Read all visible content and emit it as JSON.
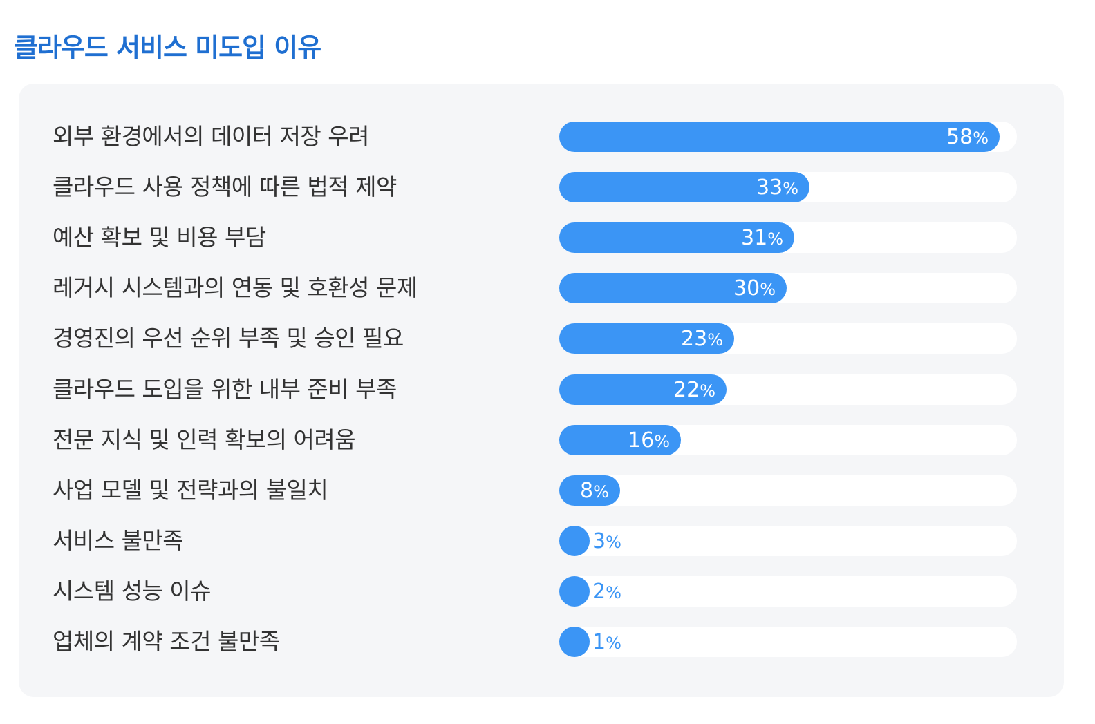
{
  "chart_data": {
    "type": "bar",
    "orientation": "horizontal",
    "title": "클라우드 서비스 미도입 이유",
    "unit": "%",
    "xlim": [
      0,
      60
    ],
    "categories": [
      "외부 환경에서의 데이터 저장 우려",
      "클라우드 사용 정책에 따른 법적 제약",
      "예산 확보 및 비용 부담",
      "레거시 시스템과의 연동 및 호환성 문제",
      "경영진의 우선 순위 부족 및 승인 필요",
      "클라우드 도입을 위한 내부 준비 부족",
      "전문 지식 및 인력 확보의 어려움",
      "사업 모델 및 전략과의 불일치",
      "서비스 불만족",
      "시스템 성능 이슈",
      "업체의 계약 조건 불만족"
    ],
    "values": [
      58,
      33,
      31,
      30,
      23,
      22,
      16,
      8,
      3,
      2,
      1
    ],
    "colors": {
      "title": "#1f6fd1",
      "bar": "#3b95f5",
      "track": "#ffffff",
      "panel": "#f5f6f8",
      "label": "#333333"
    }
  }
}
